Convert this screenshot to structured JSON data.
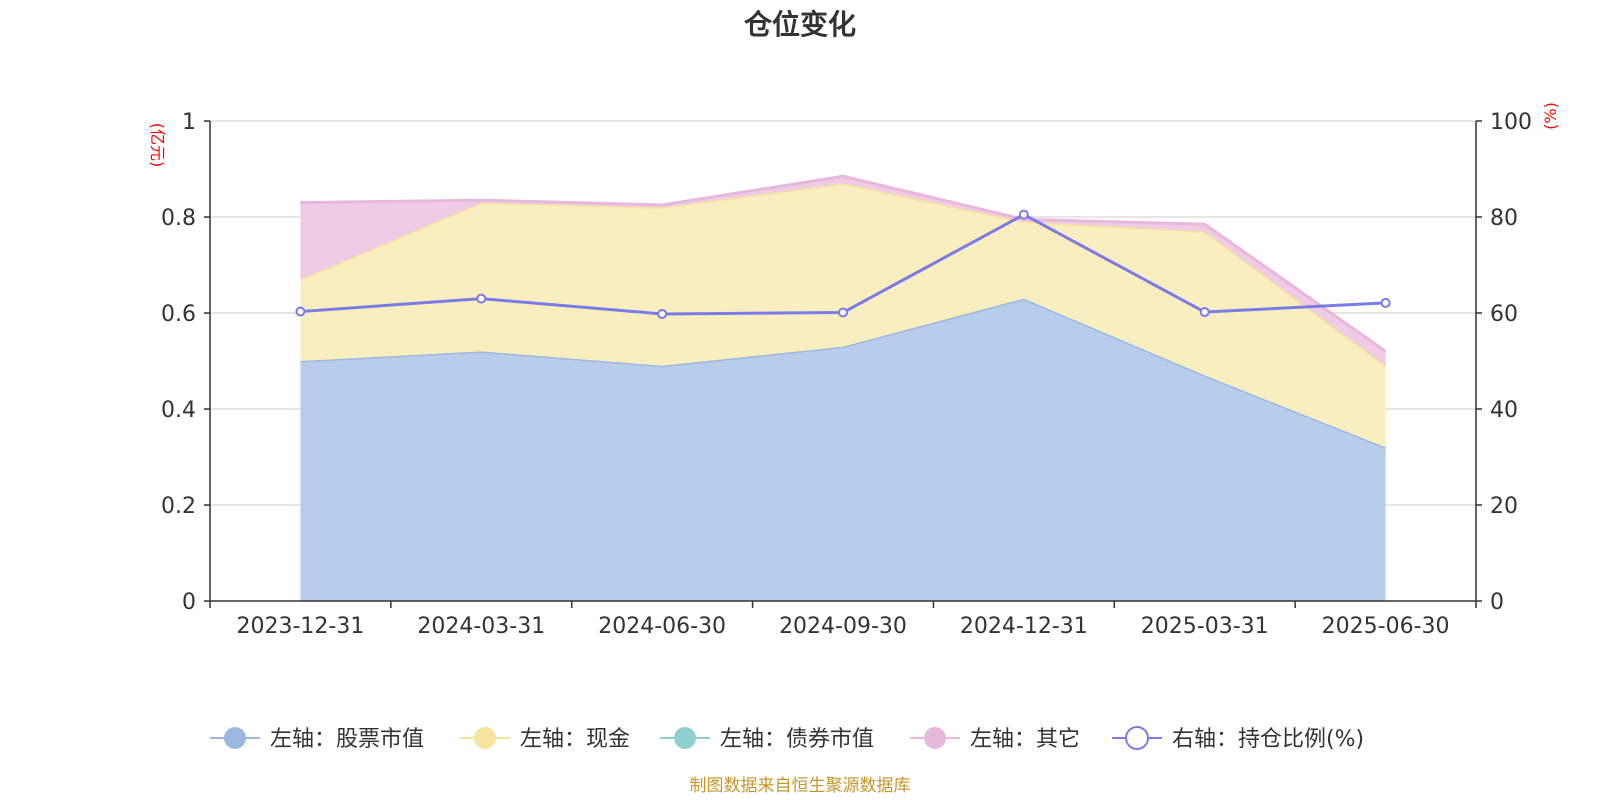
{
  "chart_data": {
    "type": "area",
    "title": "仓位变化",
    "categories": [
      "2023-12-31",
      "2024-03-31",
      "2024-06-30",
      "2024-09-30",
      "2024-12-31",
      "2025-03-31",
      "2025-06-30"
    ],
    "left_axis": {
      "unit": "(亿元)",
      "min": 0,
      "max": 1,
      "ticks": [
        "0",
        "0.2",
        "0.4",
        "0.6",
        "0.8",
        "1"
      ]
    },
    "right_axis": {
      "unit": "(%)",
      "min": 0,
      "max": 100,
      "ticks": [
        "0",
        "20",
        "40",
        "60",
        "80",
        "100"
      ]
    },
    "series": [
      {
        "name": "左轴：股票市值",
        "axis": "left",
        "kind": "stacked-area",
        "values": [
          0.5,
          0.52,
          0.49,
          0.53,
          0.63,
          0.47,
          0.32
        ],
        "color": "#9bb8e0",
        "fill": "#b8cceb"
      },
      {
        "name": "左轴：现金",
        "axis": "left",
        "kind": "stacked-area",
        "values": [
          0.17,
          0.31,
          0.33,
          0.34,
          0.16,
          0.3,
          0.17
        ],
        "color": "#f5e4a0",
        "fill": "#f9eec0"
      },
      {
        "name": "左轴：债券市值",
        "axis": "left",
        "kind": "stacked-area",
        "values": [
          0,
          0,
          0,
          0,
          0,
          0,
          0
        ],
        "color": "#8fcfcf",
        "fill": "#b9e2e2"
      },
      {
        "name": "左轴：其它",
        "axis": "left",
        "kind": "stacked-area",
        "values": [
          0.16,
          0.005,
          0.005,
          0.015,
          0.005,
          0.015,
          0.03
        ],
        "color": "#e8b8dc",
        "fill": "#efcbe6"
      },
      {
        "name": "右轴：持仓比例(%)",
        "axis": "right",
        "kind": "line",
        "values": [
          60.3,
          63.0,
          59.8,
          60.1,
          80.5,
          60.2,
          62.1
        ],
        "color": "#7b7be8"
      }
    ],
    "grid": true,
    "legend_position": "bottom"
  },
  "source_note": "制图数据来自恒生聚源数据库"
}
